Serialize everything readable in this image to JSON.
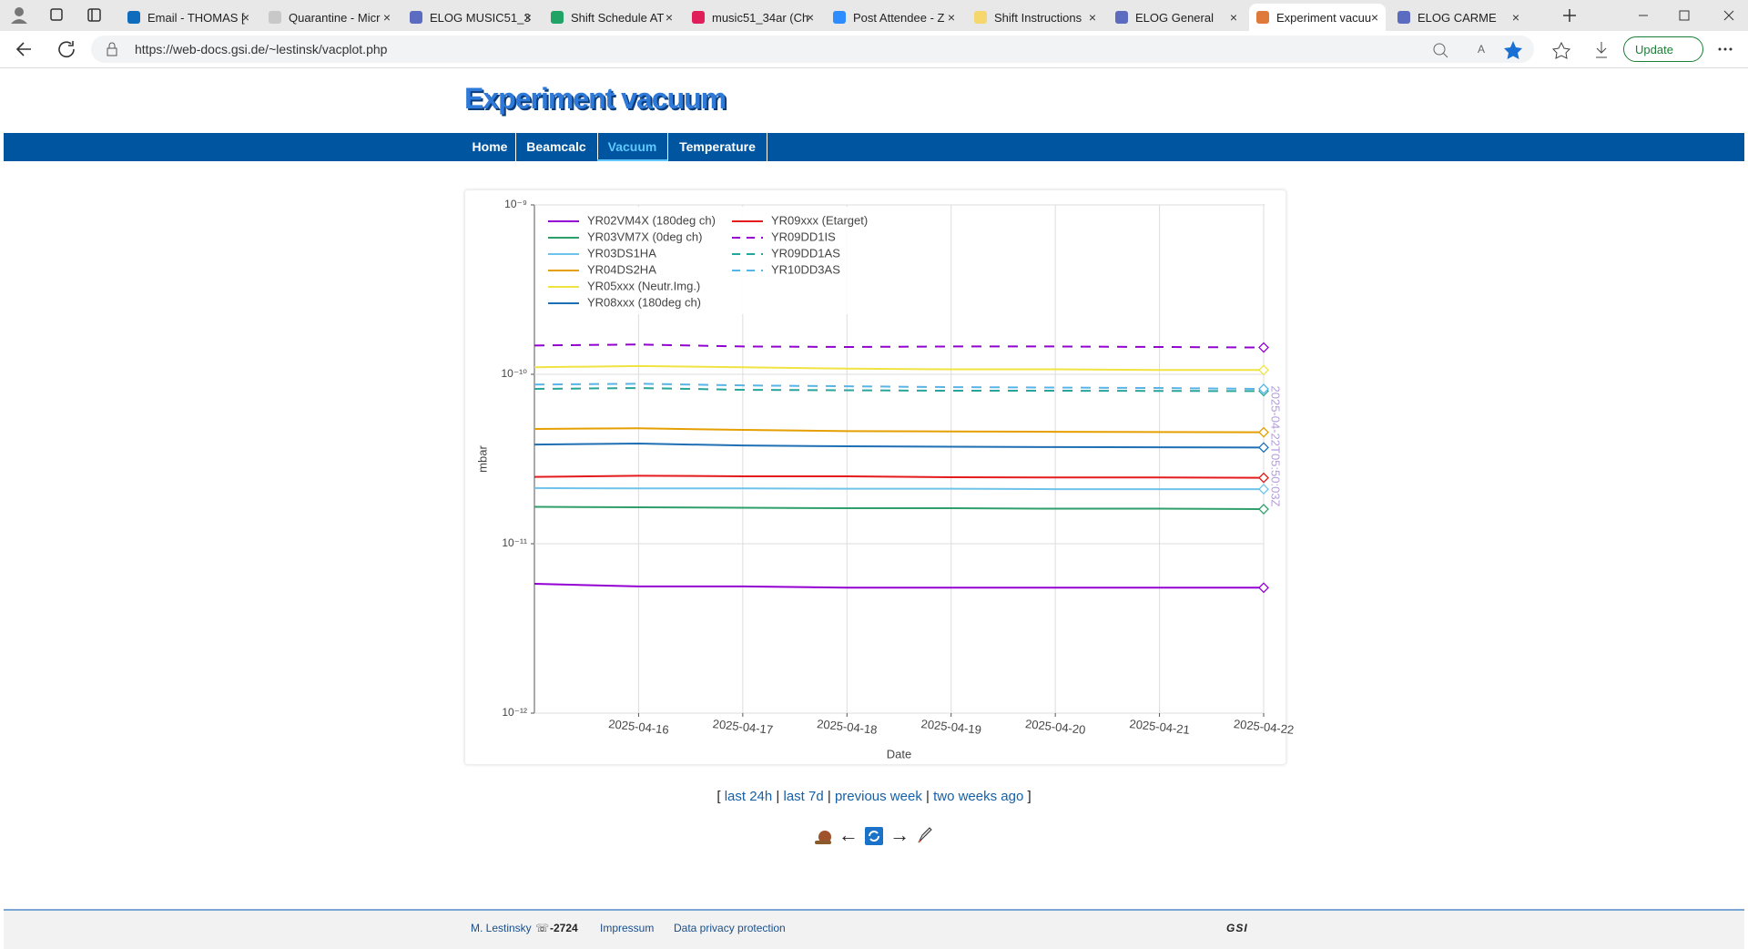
{
  "browser": {
    "tabs": [
      {
        "title": "Email - THOMAS [",
        "active": false,
        "icon": "#0f6cbd"
      },
      {
        "title": "Quarantine - Micr",
        "active": false,
        "icon": "#c8c8c8"
      },
      {
        "title": "ELOG MUSIC51_3",
        "active": false,
        "icon": "#5b6bbf"
      },
      {
        "title": "Shift Schedule AT",
        "active": false,
        "icon": "#21a366"
      },
      {
        "title": "music51_34ar (Ch",
        "active": false,
        "icon": "#e01e5a"
      },
      {
        "title": "Post Attendee - Z",
        "active": false,
        "icon": "#2d8cff"
      },
      {
        "title": "Shift Instructions",
        "active": false,
        "icon": "#f5d76e"
      },
      {
        "title": "ELOG General",
        "active": false,
        "icon": "#5b6bbf"
      },
      {
        "title": "Experiment vacuu",
        "active": true,
        "icon": "#e07a3a"
      },
      {
        "title": "ELOG CARME",
        "active": false,
        "icon": "#5b6bbf"
      }
    ],
    "url": "https://web-docs.gsi.de/~lestinsk/vacplot.php",
    "update_button": "Update"
  },
  "page": {
    "title": "Experiment vacuum",
    "nav": [
      {
        "label": "Home",
        "active": false
      },
      {
        "label": "Beamcalc",
        "active": false
      },
      {
        "label": "Vacuum",
        "active": true
      },
      {
        "label": "Temperature",
        "active": false
      }
    ]
  },
  "chart_data": {
    "type": "line",
    "y_label": "mbar",
    "x_label": "Date",
    "annotation": "2025-04-22T05:50:03Z",
    "x": [
      "2025-04-15",
      "2025-04-16",
      "2025-04-17",
      "2025-04-18",
      "2025-04-19",
      "2025-04-20",
      "2025-04-21",
      "2025-04-22"
    ],
    "xlim": [
      "2025-04-15",
      "2025-04-22"
    ],
    "xticks": [
      "2025-04-16",
      "2025-04-17",
      "2025-04-18",
      "2025-04-19",
      "2025-04-20",
      "2025-04-21",
      "2025-04-22"
    ],
    "ylim": [
      1e-12,
      1e-09
    ],
    "log_y": true,
    "grid": true,
    "yticks": [
      {
        "value": 1e-12,
        "label": "10⁻¹²"
      },
      {
        "value": 1e-11,
        "label": "10⁻¹¹"
      },
      {
        "value": 1e-10,
        "label": "10⁻¹⁰"
      },
      {
        "value": 1e-09,
        "label": "10⁻⁹"
      }
    ],
    "series": [
      {
        "name": "YR02VM4X (180deg ch)",
        "color": "#9400d3",
        "dash": false,
        "values": [
          5.8e-12,
          5.6e-12,
          5.6e-12,
          5.5e-12,
          5.5e-12,
          5.5e-12,
          5.5e-12,
          5.5e-12
        ]
      },
      {
        "name": "YR03VM7X (0deg ch)",
        "color": "#2e9e6b",
        "dash": false,
        "values": [
          1.65e-11,
          1.64e-11,
          1.63e-11,
          1.62e-11,
          1.62e-11,
          1.61e-11,
          1.61e-11,
          1.6e-11
        ]
      },
      {
        "name": "YR03DS1HA",
        "color": "#6ec3ea",
        "dash": false,
        "values": [
          2.13e-11,
          2.12e-11,
          2.12e-11,
          2.11e-11,
          2.11e-11,
          2.1e-11,
          2.1e-11,
          2.1e-11
        ]
      },
      {
        "name": "YR04DS2HA",
        "color": "#e69f00",
        "dash": false,
        "values": [
          4.76e-11,
          4.8e-11,
          4.7e-11,
          4.62e-11,
          4.6e-11,
          4.58e-11,
          4.56e-11,
          4.55e-11
        ]
      },
      {
        "name": "YR05xxx (Neutr.Img.)",
        "color": "#f0e442",
        "dash": false,
        "values": [
          1.1e-10,
          1.12e-10,
          1.1e-10,
          1.08e-10,
          1.07e-10,
          1.07e-10,
          1.06e-10,
          1.06e-10
        ]
      },
      {
        "name": "YR08xxx (180deg ch)",
        "color": "#1f6fb4",
        "dash": false,
        "values": [
          3.85e-11,
          3.9e-11,
          3.8e-11,
          3.76e-11,
          3.74e-11,
          3.72e-11,
          3.71e-11,
          3.7e-11
        ]
      },
      {
        "name": "YR09xxx (Etarget)",
        "color": "#e41a1c",
        "dash": false,
        "values": [
          2.48e-11,
          2.52e-11,
          2.5e-11,
          2.5e-11,
          2.47e-11,
          2.46e-11,
          2.46e-11,
          2.45e-11
        ]
      },
      {
        "name": "YR09DD1IS",
        "color": "#9400d3",
        "dash": true,
        "values": [
          1.48e-10,
          1.5e-10,
          1.46e-10,
          1.45e-10,
          1.46e-10,
          1.46e-10,
          1.45e-10,
          1.44e-10
        ]
      },
      {
        "name": "YR09DD1AS",
        "color": "#26a69a",
        "dash": true,
        "values": [
          8.2e-11,
          8.3e-11,
          8.1e-11,
          8.05e-11,
          8e-11,
          8e-11,
          7.98e-11,
          7.96e-11
        ]
      },
      {
        "name": "YR10DD3AS",
        "color": "#56b4e9",
        "dash": true,
        "values": [
          8.7e-11,
          8.8e-11,
          8.6e-11,
          8.5e-11,
          8.4e-11,
          8.35e-11,
          8.3e-11,
          8.2e-11
        ]
      }
    ]
  },
  "range_links": {
    "open": "[",
    "separator": "|",
    "close": "]",
    "items": [
      "last 24h",
      "last 7d",
      "previous week",
      "two weeks ago"
    ]
  },
  "pager": {
    "prev": "←",
    "next": "→"
  },
  "footer": {
    "author": "M. Lestinsky",
    "phone_icon": "☏",
    "phone": "-2724",
    "links": [
      "Impressum",
      "Data privacy protection"
    ],
    "logo": "GSI"
  }
}
